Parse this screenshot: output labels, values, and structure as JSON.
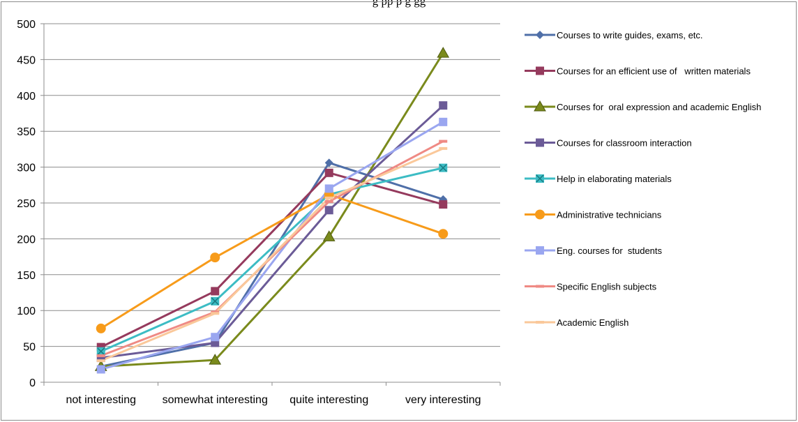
{
  "chart_data": {
    "type": "line",
    "title": "g                   pp p g                      gg",
    "xlabel": "",
    "ylabel": "",
    "categories": [
      "not interesting",
      "somewhat interesting",
      "quite interesting",
      "very interesting"
    ],
    "ylim": [
      0,
      500
    ],
    "yticks": [
      0,
      50,
      100,
      150,
      200,
      250,
      300,
      350,
      400,
      450,
      500
    ],
    "grid": true,
    "legend_position": "right",
    "series": [
      {
        "name": "Courses to write guides, exams, etc.",
        "values": [
          22,
          55,
          306,
          255
        ],
        "color": "#4f6fa8",
        "marker": "diamond"
      },
      {
        "name": "Courses for an efficient use of   written materials",
        "values": [
          49,
          127,
          292,
          248
        ],
        "color": "#953a5d",
        "marker": "square"
      },
      {
        "name": "Courses for  oral expression and academic English",
        "values": [
          22,
          31,
          203,
          459
        ],
        "color": "#7a8a1c",
        "marker": "triangle"
      },
      {
        "name": "Courses for classroom interaction",
        "values": [
          34,
          55,
          240,
          386
        ],
        "color": "#6b5b97",
        "marker": "square"
      },
      {
        "name": "Help in elaborating materials",
        "values": [
          43,
          113,
          262,
          299
        ],
        "color": "#3cbcc4",
        "marker": "square-x"
      },
      {
        "name": "Administrative technicians",
        "values": [
          75,
          174,
          262,
          207
        ],
        "color": "#f79b1a",
        "marker": "circle"
      },
      {
        "name": "Eng. courses for  students",
        "values": [
          18,
          63,
          270,
          363
        ],
        "color": "#9aa6f0",
        "marker": "square"
      },
      {
        "name": "Specific English subjects",
        "values": [
          37,
          98,
          252,
          336
        ],
        "color": "#ef8a84",
        "marker": "dash"
      },
      {
        "name": "Academic English",
        "values": [
          30,
          96,
          257,
          326
        ],
        "color": "#fac89a",
        "marker": "dash"
      }
    ]
  }
}
